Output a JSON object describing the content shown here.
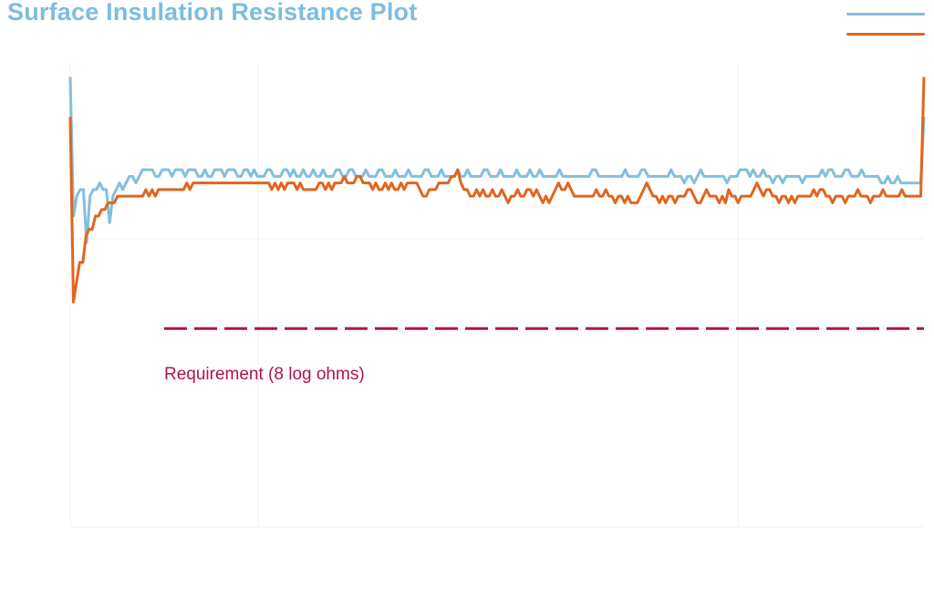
{
  "title": "Surface Insulation Resistance Plot",
  "colors": {
    "title": "#7bbde0",
    "series_blue": "#82bfde",
    "series_orange": "#e0651e",
    "requirement": "#b0124f",
    "grid": "#f2f2f2"
  },
  "requirement": {
    "label": "Requirement (8 log ohms)",
    "value": 8
  },
  "chart_data": {
    "type": "line",
    "title": "Surface Insulation Resistance Plot",
    "xlabel": "",
    "ylabel": "",
    "grid": true,
    "legend_placement": "top-right",
    "ylim": [
      5,
      12
    ],
    "reference_lines": [
      {
        "label": "Requirement (8 log ohms)",
        "y": 8
      }
    ],
    "series": [
      {
        "color": "#82bfde",
        "values": [
          11.8,
          9.7,
          10.0,
          10.1,
          10.1,
          9.3,
          10.0,
          10.1,
          10.1,
          10.2,
          10.1,
          10.1,
          9.6,
          10.0,
          10.1,
          10.2,
          10.1,
          10.2,
          10.3,
          10.3,
          10.2,
          10.3,
          10.4,
          10.4,
          10.4,
          10.4,
          10.3,
          10.3,
          10.4,
          10.4,
          10.4,
          10.3,
          10.4,
          10.4,
          10.4,
          10.3,
          10.4,
          10.4,
          10.4,
          10.3,
          10.3,
          10.4,
          10.3,
          10.3,
          10.4,
          10.4,
          10.4,
          10.3,
          10.4,
          10.4,
          10.4,
          10.3,
          10.3,
          10.4,
          10.4,
          10.3,
          10.4,
          10.3,
          10.3,
          10.3,
          10.4,
          10.4,
          10.3,
          10.3,
          10.3,
          10.4,
          10.4,
          10.3,
          10.4,
          10.3,
          10.3,
          10.4,
          10.3,
          10.3,
          10.4,
          10.3,
          10.3,
          10.4,
          10.3,
          10.3,
          10.3,
          10.4,
          10.4,
          10.3,
          10.3,
          10.4,
          10.4,
          10.3,
          10.3,
          10.3,
          10.4,
          10.3,
          10.3,
          10.3,
          10.4,
          10.4,
          10.3,
          10.3,
          10.3,
          10.4,
          10.3,
          10.3,
          10.3,
          10.4,
          10.3,
          10.3,
          10.3,
          10.3,
          10.4,
          10.4,
          10.3,
          10.3,
          10.3,
          10.4,
          10.3,
          10.3,
          10.3,
          10.3,
          10.4,
          10.3,
          10.3,
          10.4,
          10.3,
          10.3,
          10.3,
          10.3,
          10.4,
          10.4,
          10.3,
          10.3,
          10.3,
          10.4,
          10.3,
          10.3,
          10.3,
          10.3,
          10.4,
          10.3,
          10.3,
          10.3,
          10.4,
          10.3,
          10.3,
          10.4,
          10.3,
          10.3,
          10.3,
          10.3,
          10.3,
          10.4,
          10.3,
          10.3,
          10.3,
          10.3,
          10.3,
          10.3,
          10.3,
          10.3,
          10.3,
          10.4,
          10.4,
          10.3,
          10.3,
          10.3,
          10.3,
          10.3,
          10.3,
          10.3,
          10.3,
          10.4,
          10.3,
          10.3,
          10.3,
          10.3,
          10.4,
          10.4,
          10.3,
          10.3,
          10.3,
          10.3,
          10.3,
          10.3,
          10.3,
          10.4,
          10.3,
          10.3,
          10.3,
          10.2,
          10.3,
          10.3,
          10.2,
          10.3,
          10.4,
          10.3,
          10.3,
          10.3,
          10.3,
          10.3,
          10.3,
          10.3,
          10.2,
          10.3,
          10.3,
          10.3,
          10.4,
          10.4,
          10.4,
          10.3,
          10.4,
          10.3,
          10.3,
          10.4,
          10.3,
          10.3,
          10.2,
          10.3,
          10.3,
          10.2,
          10.3,
          10.3,
          10.3,
          10.3,
          10.3,
          10.2,
          10.3,
          10.3,
          10.3,
          10.3,
          10.3,
          10.4,
          10.3,
          10.4,
          10.4,
          10.3,
          10.3,
          10.3,
          10.4,
          10.4,
          10.3,
          10.3,
          10.3,
          10.4,
          10.3,
          10.3,
          10.3,
          10.3,
          10.3,
          10.2,
          10.2,
          10.3,
          10.2,
          10.2,
          10.3,
          10.2,
          10.2,
          10.2,
          10.2,
          10.2,
          10.2,
          10.2,
          11.2
        ]
      },
      {
        "color": "#e0651e",
        "values": [
          11.2,
          8.4,
          8.7,
          9.0,
          9.0,
          9.4,
          9.5,
          9.5,
          9.7,
          9.7,
          9.8,
          9.8,
          9.9,
          9.9,
          9.9,
          10.0,
          10.0,
          10.0,
          10.0,
          10.0,
          10.0,
          10.0,
          10.0,
          10.0,
          10.1,
          10.0,
          10.1,
          10.0,
          10.1,
          10.1,
          10.1,
          10.1,
          10.1,
          10.1,
          10.1,
          10.1,
          10.1,
          10.2,
          10.1,
          10.2,
          10.2,
          10.2,
          10.2,
          10.2,
          10.2,
          10.2,
          10.2,
          10.2,
          10.2,
          10.2,
          10.2,
          10.2,
          10.2,
          10.2,
          10.2,
          10.2,
          10.2,
          10.2,
          10.2,
          10.2,
          10.2,
          10.2,
          10.2,
          10.2,
          10.1,
          10.2,
          10.1,
          10.2,
          10.1,
          10.2,
          10.2,
          10.2,
          10.1,
          10.2,
          10.1,
          10.1,
          10.1,
          10.1,
          10.1,
          10.2,
          10.2,
          10.1,
          10.2,
          10.1,
          10.2,
          10.2,
          10.2,
          10.3,
          10.2,
          10.2,
          10.2,
          10.3,
          10.3,
          10.2,
          10.2,
          10.2,
          10.1,
          10.2,
          10.1,
          10.1,
          10.2,
          10.1,
          10.2,
          10.1,
          10.1,
          10.2,
          10.1,
          10.2,
          10.2,
          10.2,
          10.2,
          10.1,
          10.0,
          10.0,
          10.1,
          10.1,
          10.1,
          10.2,
          10.2,
          10.2,
          10.2,
          10.3,
          10.3,
          10.4,
          10.2,
          10.1,
          10.1,
          10.0,
          10.0,
          10.1,
          10.0,
          10.1,
          10.0,
          10.0,
          10.1,
          10.0,
          10.0,
          10.1,
          10.0,
          9.9,
          10.0,
          10.0,
          10.1,
          10.0,
          10.0,
          10.1,
          10.1,
          10.0,
          10.1,
          10.0,
          9.9,
          10.0,
          9.9,
          10.0,
          10.1,
          10.2,
          10.1,
          10.1,
          10.2,
          10.1,
          10.0,
          10.0,
          10.0,
          10.0,
          10.0,
          10.0,
          10.0,
          10.1,
          10.0,
          10.0,
          10.1,
          10.0,
          10.0,
          9.9,
          10.0,
          10.0,
          9.9,
          10.0,
          9.9,
          9.9,
          9.9,
          10.0,
          10.1,
          10.2,
          10.1,
          10.0,
          10.0,
          9.9,
          10.0,
          9.9,
          10.0,
          10.0,
          9.9,
          10.0,
          10.0,
          10.0,
          10.1,
          10.1,
          10.0,
          9.9,
          9.9,
          10.0,
          10.1,
          10.0,
          10.0,
          10.0,
          9.9,
          10.0,
          9.9,
          10.1,
          10.0,
          10.0,
          9.9,
          10.0,
          10.0,
          10.0,
          10.0,
          10.1,
          10.2,
          10.1,
          10.0,
          10.1,
          10.1,
          10.0,
          10.0,
          9.9,
          10.0,
          10.0,
          9.9,
          10.0,
          9.9,
          10.0,
          10.0,
          10.0,
          10.0,
          10.0,
          10.1,
          10.0,
          10.1,
          10.1,
          10.0,
          10.0,
          9.9,
          10.0,
          10.0,
          10.0,
          9.9,
          10.0,
          10.0,
          10.0,
          10.1,
          10.0,
          10.0,
          10.0,
          9.9,
          10.0,
          10.0,
          10.0,
          10.1,
          10.0,
          10.0,
          10.0,
          10.0,
          10.0,
          10.1,
          10.0,
          10.0,
          10.0,
          10.0,
          10.0,
          10.0,
          11.8
        ]
      }
    ]
  }
}
